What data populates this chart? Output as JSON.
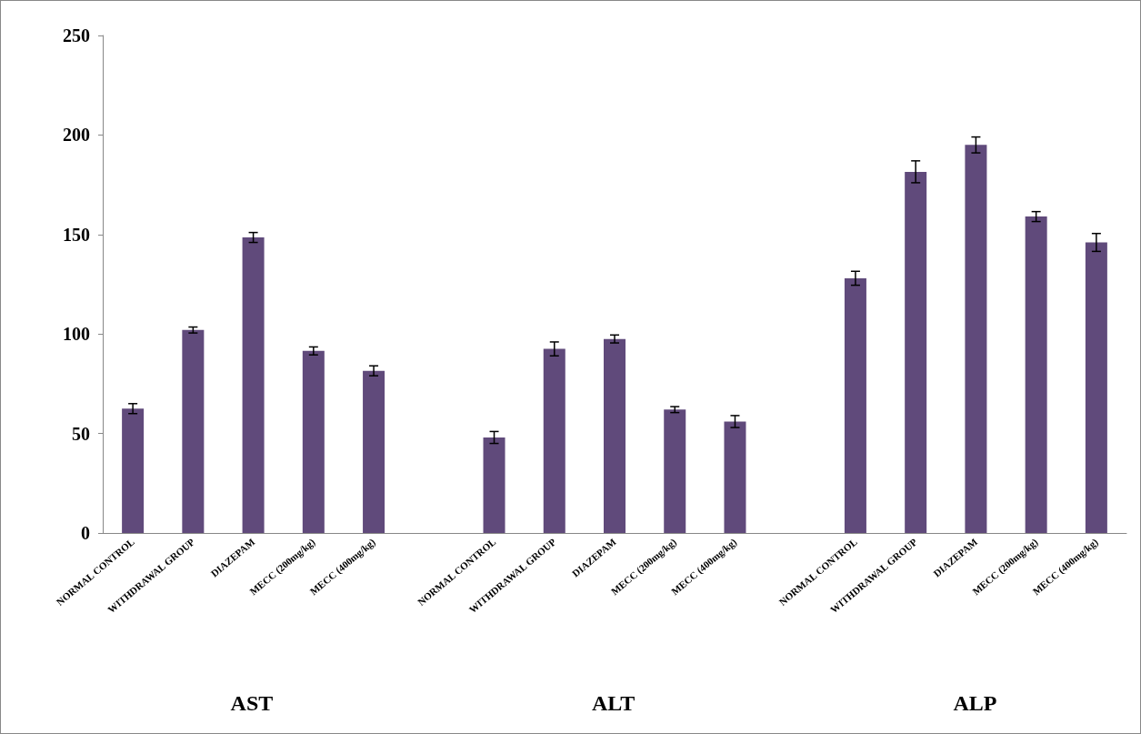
{
  "chart_data": {
    "type": "bar",
    "categories": [
      "NORMAL CONTROL",
      "WITHDRAWAL GROUP",
      "DIAZEPAM",
      "MECC (200mg/kg)",
      "MECC (400mg/kg)",
      null,
      "NORMAL CONTROL",
      "WITHDRAWAL GROUP",
      "DIAZEPAM",
      "MECC (200mg/kg)",
      "MECC (400mg/kg)",
      null,
      "NORMAL CONTROL",
      "WITHDRAWAL GROUP",
      "DIAZEPAM",
      "MECC (200mg/kg)",
      "MECC (400mg/kg)"
    ],
    "values": [
      62.5,
      102,
      148.5,
      91.5,
      81.5,
      null,
      48,
      92.5,
      97.5,
      62,
      56,
      null,
      128,
      181.5,
      195,
      159,
      146
    ],
    "errors": [
      2.5,
      1.5,
      2.5,
      2,
      2.5,
      null,
      3,
      3.5,
      2,
      1.5,
      3,
      null,
      3.5,
      5.5,
      4,
      2.5,
      4.5
    ],
    "color": "#604a7b",
    "ylim": [
      0,
      250
    ],
    "yticks": [
      0,
      50,
      100,
      150,
      200,
      250
    ],
    "grid": false,
    "annotations": [
      "AST",
      "ALT",
      "ALP"
    ]
  }
}
